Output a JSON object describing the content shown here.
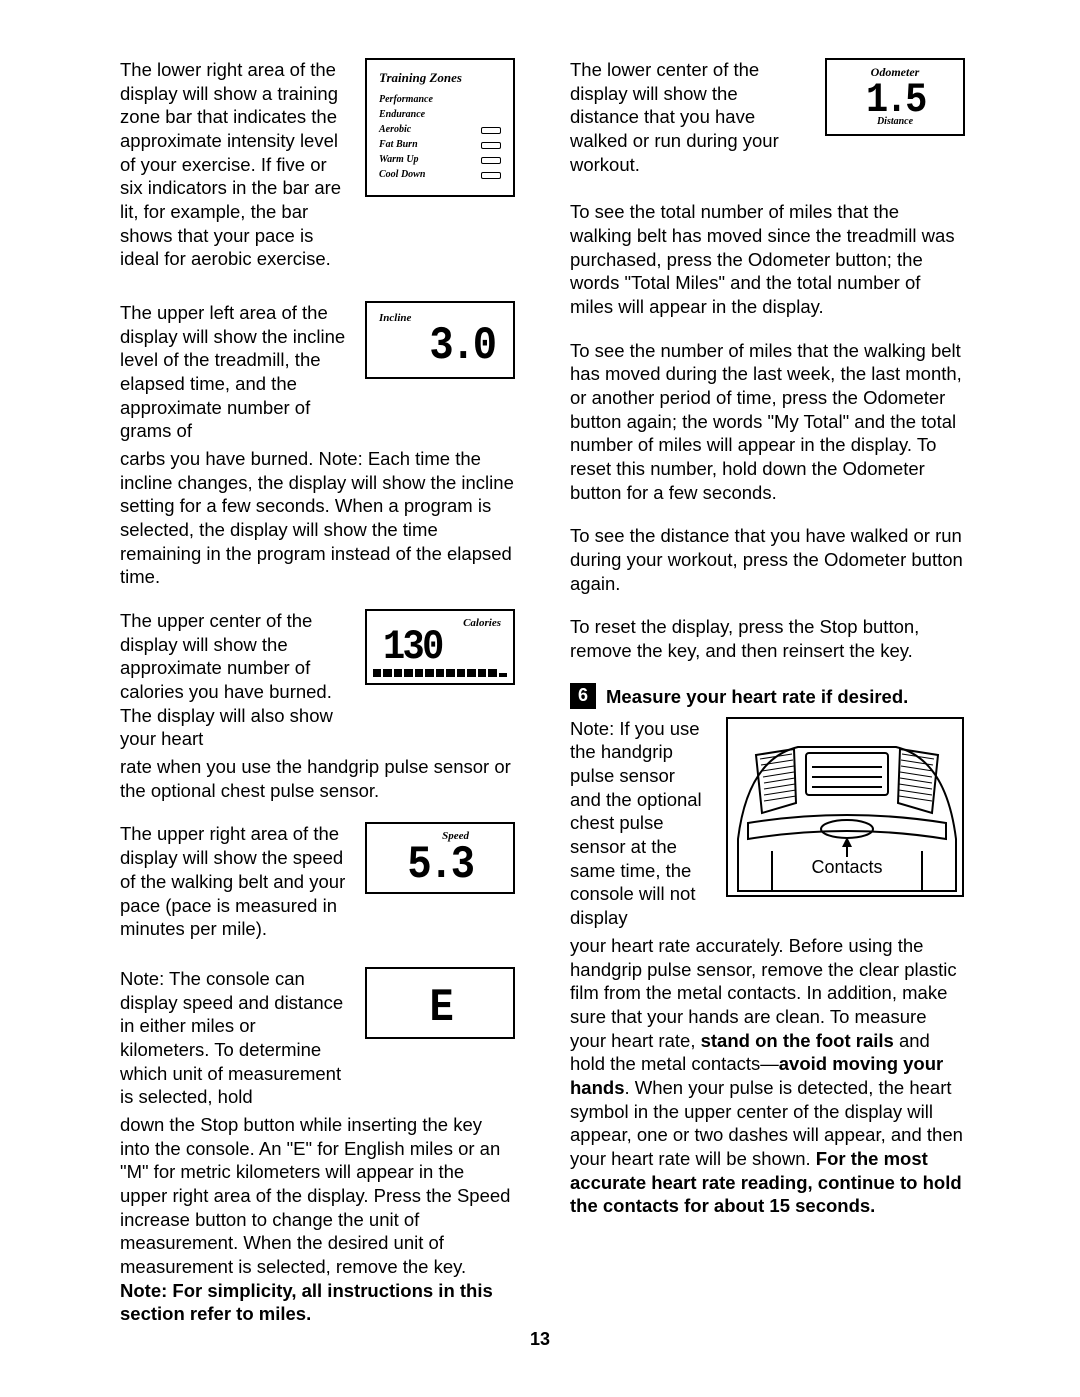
{
  "pageNumber": "13",
  "left": {
    "p1a": "The lower right area of the display will show a training zone bar that indicates the approximate intensity level of your exercise. If five or six indicators in the bar are lit, for example, the bar shows that your pace is ideal for aerobic exercise.",
    "p2a": "The upper left area of the display will show the incline level of the treadmill, the elapsed time, and the approximate number of grams of",
    "p2b": "carbs you have burned. Note: Each time the incline changes, the display will show the incline setting for a few seconds. When a program is selected, the display will show the time remaining in the program instead of the elapsed time.",
    "p3a": "The upper center of the display will show the approximate number of calories you have burned. The display will also show your heart",
    "p3b": "rate when you use the handgrip pulse sensor or the optional chest pulse sensor.",
    "p4a": "The upper right area of the display will show the speed of the walking belt and your pace (pace is measured in minutes per mile).",
    "p5a": "Note: The console can display speed and distance in either miles or kilometers. To determine which unit of measurement is selected, hold",
    "p5b_part1": "down the Stop button while inserting the key into the console. An \"E\" for English miles or an \"M\" for metric kilometers will appear in the upper right area of the display. Press the Speed increase button to change the unit of measurement. When the desired unit of measurement is selected, remove the key. ",
    "p5b_bold": "Note: For simplicity, all instructions in this section refer to miles."
  },
  "right": {
    "p1a": "The lower center of the display will show the distance that you have walked or run during your workout.",
    "p2": "To see the total number of miles that the walking belt has moved since the treadmill was purchased, press the Odometer button; the words \"Total Miles\" and the total number of miles will appear in the display.",
    "p3": "To see the number of miles that the walking belt has moved during the last week, the last month, or another period of time, press the Odometer button again; the words \"My Total\" and the total number of miles will appear in the display. To reset this number, hold down the Odometer button for a few seconds.",
    "p4": "To see the distance that you have walked or run during your workout, press the Odometer button again.",
    "p5": "To reset the display, press the Stop button, remove the key, and then reinsert the key.",
    "step6_title": "Measure your heart rate if desired.",
    "p6a": "Note: If you use the handgrip pulse sensor and the optional chest pulse sensor at the same time, the console will not display",
    "p6b_1": "your heart rate accurately. Before using the handgrip pulse sensor, remove the clear plastic film from the metal contacts. In addition, make sure that your hands are clean. To measure your heart rate, ",
    "p6b_bold1": "stand on the foot rails",
    "p6b_2": " and hold the metal contacts—",
    "p6b_bold2": "avoid moving your hands",
    "p6b_3": ". When your pulse is detected, the heart symbol in the upper center of the display will appear, one or two dashes will appear, and then your heart rate will be shown. ",
    "p6b_bold3": "For the most accurate heart rate reading, continue to hold the contacts for about 15 seconds.",
    "contactsLabel": "Contacts"
  },
  "figures": {
    "trainingZones": {
      "title": "Training Zones",
      "rows": [
        "Performance",
        "Endurance",
        "Aerobic",
        "Fat Burn",
        "Warm Up",
        "Cool Down"
      ],
      "barsForLast": 4
    },
    "incline": {
      "label": "Incline",
      "value": "3.0"
    },
    "calories": {
      "label": "Calories",
      "value": "130"
    },
    "speed": {
      "label": "Speed",
      "value": "5.3"
    },
    "unit": {
      "value": "E"
    },
    "odometer": {
      "title": "Odometer",
      "value": "1.5",
      "sub": "Distance"
    }
  }
}
